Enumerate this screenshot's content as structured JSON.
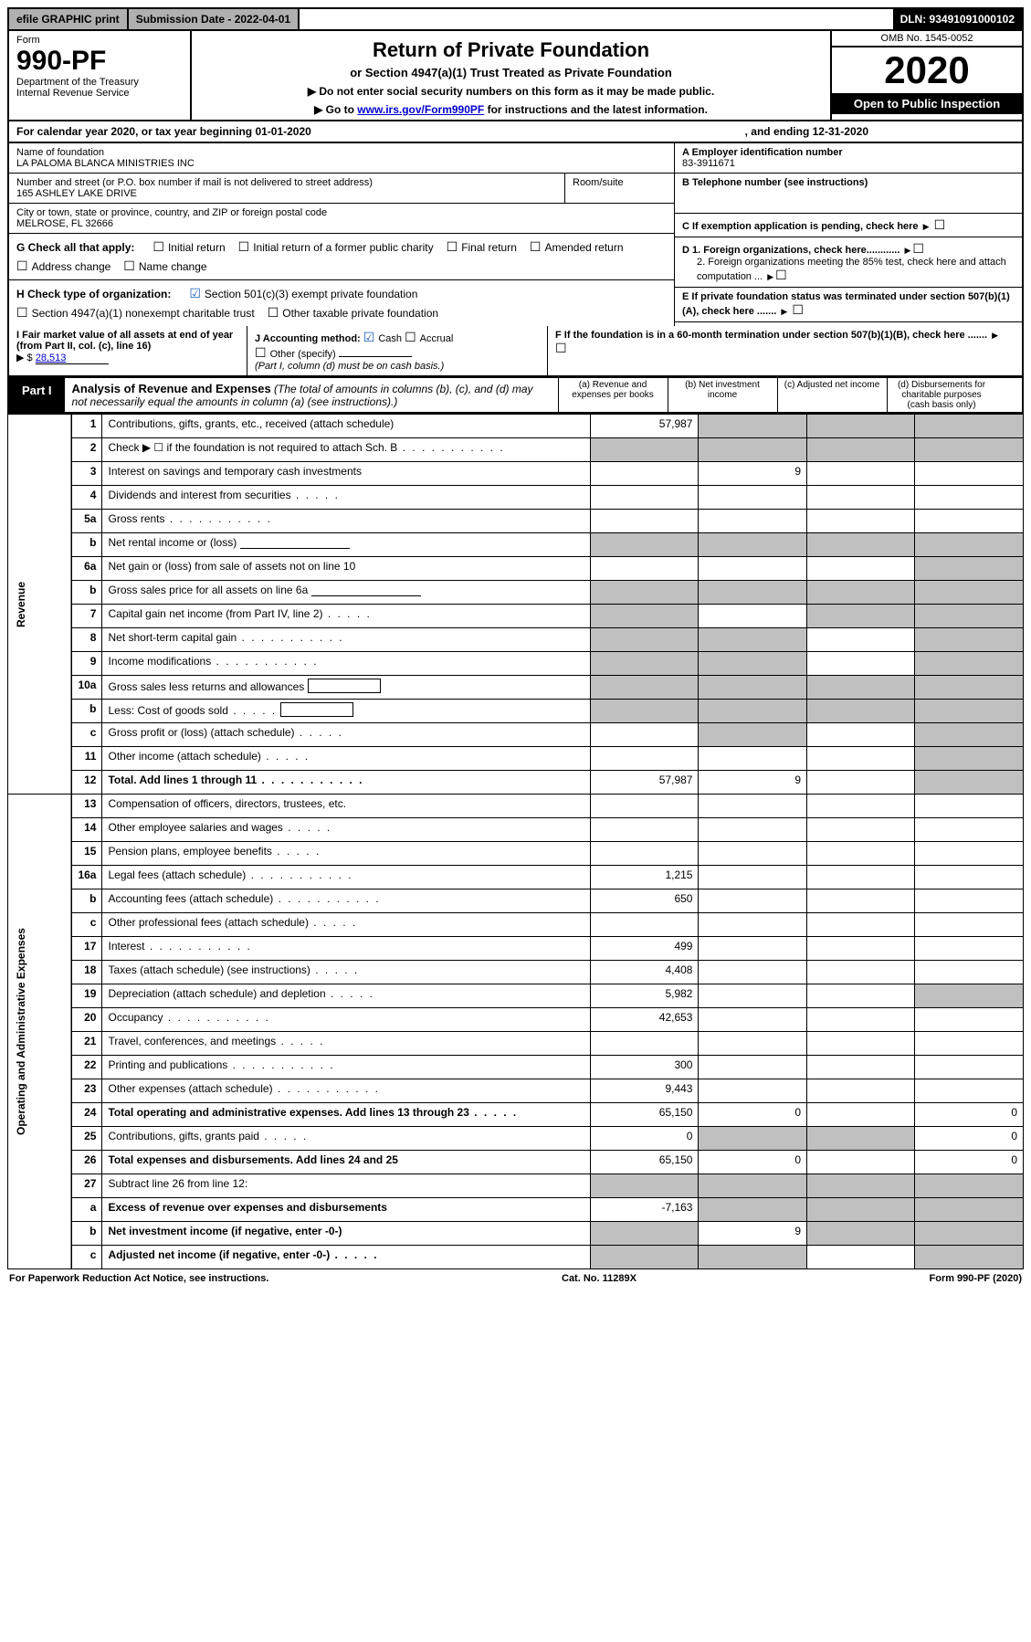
{
  "topbar": {
    "efile_label": "efile GRAPHIC print",
    "submission_label": "Submission Date - 2022-04-01",
    "dln_label": "DLN: 93491091000102"
  },
  "header": {
    "form_word": "Form",
    "form_no": "990-PF",
    "dept": "Department of the Treasury",
    "irs": "Internal Revenue Service",
    "title": "Return of Private Foundation",
    "subtitle": "or Section 4947(a)(1) Trust Treated as Private Foundation",
    "note1": "▶ Do not enter social security numbers on this form as it may be made public.",
    "note2_prefix": "▶ Go to ",
    "note2_link": "www.irs.gov/Form990PF",
    "note2_suffix": " for instructions and the latest information.",
    "omb": "OMB No. 1545-0052",
    "year": "2020",
    "open": "Open to Public Inspection"
  },
  "yearline": {
    "left": "For calendar year 2020, or tax year beginning 01-01-2020",
    "right": ", and ending 12-31-2020"
  },
  "nameblock": {
    "name_label": "Name of foundation",
    "name": "LA PALOMA BLANCA MINISTRIES INC",
    "addr_label": "Number and street (or P.O. box number if mail is not delivered to street address)",
    "addr": "165 ASHLEY LAKE DRIVE",
    "room_label": "Room/suite",
    "city_label": "City or town, state or province, country, and ZIP or foreign postal code",
    "city": "MELROSE, FL  32666"
  },
  "rightinfo": {
    "a_label": "A Employer identification number",
    "a_value": "83-3911671",
    "b_label": "B Telephone number (see instructions)",
    "c_label": "C If exemption application is pending, check here",
    "d1_label": "D 1. Foreign organizations, check here............",
    "d2_label": "2. Foreign organizations meeting the 85% test, check here and attach computation ...",
    "e_label": "E  If private foundation status was terminated under section 507(b)(1)(A), check here .......",
    "f_label": "F  If the foundation is in a 60-month termination under section 507(b)(1)(B), check here ......."
  },
  "gblock": {
    "lead": "G Check all that apply:",
    "opts": [
      "Initial return",
      "Initial return of a former public charity",
      "Final return",
      "Amended return",
      "Address change",
      "Name change"
    ]
  },
  "hblock": {
    "lead": "H Check type of organization:",
    "o1": "Section 501(c)(3) exempt private foundation",
    "o2": "Section 4947(a)(1) nonexempt charitable trust",
    "o3": "Other taxable private foundation"
  },
  "iblock": {
    "label": "I Fair market value of all assets at end of year (from Part II, col. (c), line 16)",
    "val_prefix": "▶ $",
    "val": "28,513"
  },
  "jblock": {
    "lead": "J Accounting method:",
    "o1": "Cash",
    "o2": "Accrual",
    "o3": "Other (specify)",
    "note": "(Part I, column (d) must be on cash basis.)"
  },
  "part1": {
    "tab": "Part I",
    "title_bold": "Analysis of Revenue and Expenses",
    "title_rest": " (The total of amounts in columns (b), (c), and (d) may not necessarily equal the amounts in column (a) (see instructions).)",
    "cols": [
      "(a)   Revenue and expenses per books",
      "(b)   Net investment income",
      "(c)   Adjusted net income",
      "(d)   Disbursements for charitable purposes (cash basis only)"
    ]
  },
  "sidelabels": {
    "rev": "Revenue",
    "exp": "Operating and Administrative Expenses"
  },
  "rows": [
    {
      "n": "1",
      "d": "Contributions, gifts, grants, etc., received (attach schedule)",
      "a": "57,987",
      "greyBCD": true
    },
    {
      "n": "2",
      "d": "Check ▶ ☐ if the foundation is not required to attach Sch. B",
      "dotted": true,
      "greyAll": true,
      "noVals": true
    },
    {
      "n": "3",
      "d": "Interest on savings and temporary cash investments",
      "b": "9"
    },
    {
      "n": "4",
      "d": "Dividends and interest from securities",
      "shortdots": true
    },
    {
      "n": "5a",
      "d": "Gross rents",
      "dotted": true
    },
    {
      "n": "b",
      "d": "Net rental income or (loss)",
      "blankin": true,
      "greyAll": true,
      "noVals": true
    },
    {
      "n": "6a",
      "d": "Net gain or (loss) from sale of assets not on line 10",
      "greyD": true
    },
    {
      "n": "b",
      "d": "Gross sales price for all assets on line 6a",
      "blankin": true,
      "greyAll": true,
      "noVals": true
    },
    {
      "n": "7",
      "d": "Capital gain net income (from Part IV, line 2)",
      "shortdots": true,
      "greyA": true,
      "greyCD": true
    },
    {
      "n": "8",
      "d": "Net short-term capital gain",
      "dotted": true,
      "greyAB": true,
      "greyD": true
    },
    {
      "n": "9",
      "d": "Income modifications",
      "dotted": true,
      "greyAB": true,
      "greyD": true
    },
    {
      "n": "10a",
      "d": "Gross sales less returns and allowances",
      "blankbox": true,
      "greyAll": true,
      "noVals": true
    },
    {
      "n": "b",
      "d": "Less: Cost of goods sold",
      "shortdots": true,
      "blankbox": true,
      "greyAll": true,
      "noVals": true
    },
    {
      "n": "c",
      "d": "Gross profit or (loss) (attach schedule)",
      "shortdots": true,
      "greyB": true,
      "greyD": true
    },
    {
      "n": "11",
      "d": "Other income (attach schedule)",
      "shortdots": true,
      "greyD": true
    },
    {
      "n": "12",
      "d": "Total. Add lines 1 through 11",
      "dotted": true,
      "bold": true,
      "a": "57,987",
      "b": "9",
      "greyD": true
    },
    {
      "n": "13",
      "d": "Compensation of officers, directors, trustees, etc."
    },
    {
      "n": "14",
      "d": "Other employee salaries and wages",
      "shortdots": true
    },
    {
      "n": "15",
      "d": "Pension plans, employee benefits",
      "shortdots": true
    },
    {
      "n": "16a",
      "d": "Legal fees (attach schedule)",
      "dotted": true,
      "a": "1,215"
    },
    {
      "n": "b",
      "d": "Accounting fees (attach schedule)",
      "dotted": true,
      "a": "650"
    },
    {
      "n": "c",
      "d": "Other professional fees (attach schedule)",
      "shortdots": true
    },
    {
      "n": "17",
      "d": "Interest",
      "dotted": true,
      "a": "499"
    },
    {
      "n": "18",
      "d": "Taxes (attach schedule) (see instructions)",
      "shortdots": true,
      "a": "4,408"
    },
    {
      "n": "19",
      "d": "Depreciation (attach schedule) and depletion",
      "shortdots": true,
      "a": "5,982",
      "greyD": true
    },
    {
      "n": "20",
      "d": "Occupancy",
      "dotted": true,
      "a": "42,653"
    },
    {
      "n": "21",
      "d": "Travel, conferences, and meetings",
      "shortdots": true
    },
    {
      "n": "22",
      "d": "Printing and publications",
      "dotted": true,
      "a": "300"
    },
    {
      "n": "23",
      "d": "Other expenses (attach schedule)",
      "dotted": true,
      "a": "9,443"
    },
    {
      "n": "24",
      "d": "Total operating and administrative expenses. Add lines 13 through 23",
      "bold": true,
      "shortdots": true,
      "a": "65,150",
      "b": "0",
      "d_val": "0"
    },
    {
      "n": "25",
      "d": "Contributions, gifts, grants paid",
      "shortdots": true,
      "a": "0",
      "greyBC": true,
      "d_val": "0"
    },
    {
      "n": "26",
      "d": "Total expenses and disbursements. Add lines 24 and 25",
      "bold": true,
      "a": "65,150",
      "b": "0",
      "d_val": "0"
    },
    {
      "n": "27",
      "d": "Subtract line 26 from line 12:",
      "greyAll": true,
      "noVals": true
    },
    {
      "n": "a",
      "d": "Excess of revenue over expenses and disbursements",
      "bold": true,
      "a": "-7,163",
      "greyBCD": true
    },
    {
      "n": "b",
      "d": "Net investment income (if negative, enter -0-)",
      "bold": true,
      "greyA": true,
      "b": "9",
      "greyCD": true
    },
    {
      "n": "c",
      "d": "Adjusted net income (if negative, enter -0-)",
      "bold": true,
      "shortdots": true,
      "greyAB": true,
      "greyD": true
    }
  ],
  "footer": {
    "left": "For Paperwork Reduction Act Notice, see instructions.",
    "mid": "Cat. No. 11289X",
    "right": "Form 990-PF (2020)"
  }
}
